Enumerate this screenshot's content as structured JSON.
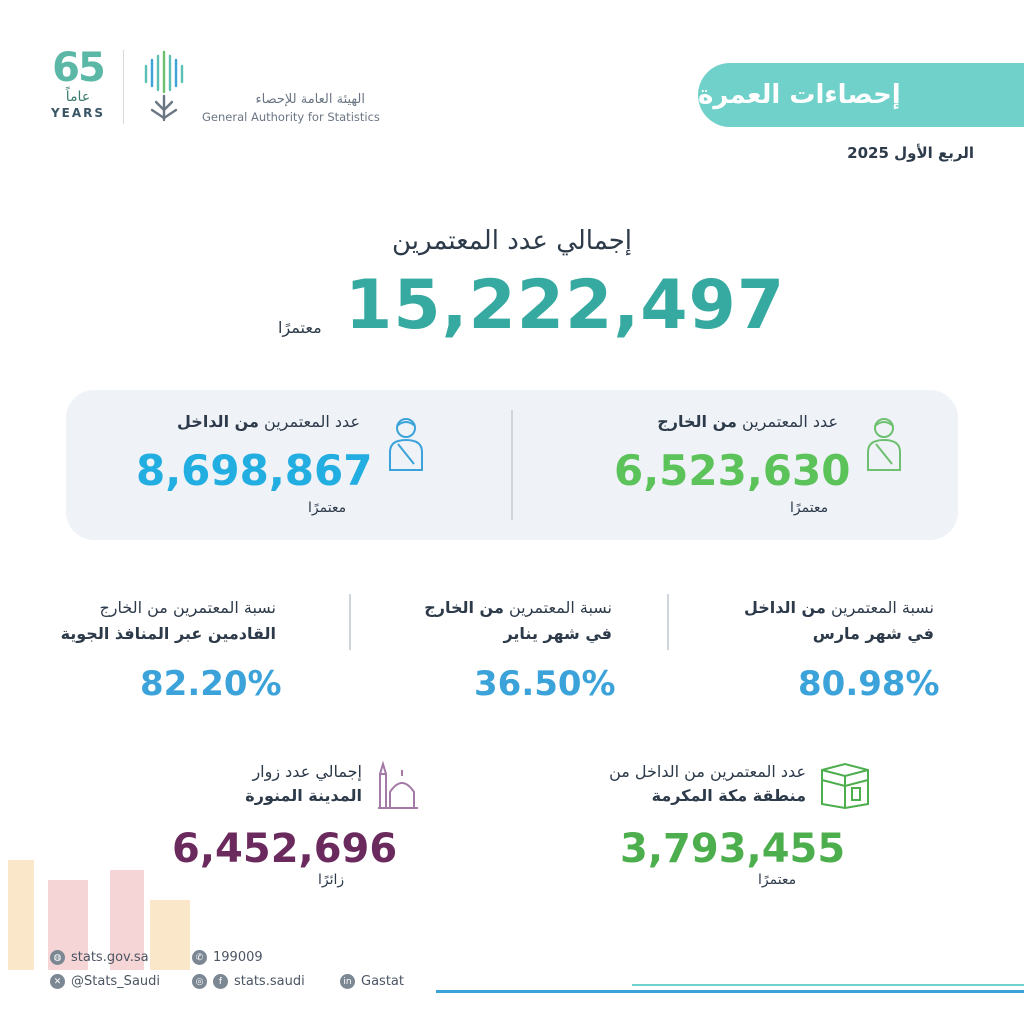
{
  "header": {
    "title": "إحصاءات العمرة",
    "quarter": "الربع الأول 2025",
    "anniversary_number": "65",
    "anniversary_ar": "عاماً",
    "anniversary_en": "YEARS",
    "org_ar": "الهيئة العامة للإحصاء",
    "org_en": "General Authority for Statistics"
  },
  "total": {
    "label": "إجمالي عدد المعتمرين",
    "value": "15,222,497",
    "unit": "معتمرًا"
  },
  "external": {
    "label_prefix": "عدد المعتمرين",
    "label_bold": "من الخارج",
    "value": "6,523,630",
    "unit": "معتمرًا"
  },
  "internal": {
    "label_prefix": "عدد المعتمرين",
    "label_bold": "من الداخل",
    "value": "8,698,867",
    "unit": "معتمرًا"
  },
  "ratios": [
    {
      "line1_prefix": "نسبة المعتمرين",
      "line1_bold": "من الداخل",
      "line2": "في شهر مارس",
      "value": "80.98%"
    },
    {
      "line1_prefix": "نسبة المعتمرين",
      "line1_bold": "من الخارج",
      "line2": "في شهر يناير",
      "value": "36.50%"
    },
    {
      "line1_prefix": "نسبة المعتمرين من الخارج",
      "line1_bold": "",
      "line2": "القادمين عبر المنافذ الجوية",
      "value": "82.20%"
    }
  ],
  "makkah": {
    "line1": "عدد المعتمرين من الداخل من",
    "line2": "منطقة مكة المكرمة",
    "value": "3,793,455",
    "unit": "معتمرًا"
  },
  "madinah": {
    "line1": "إجمالي عدد زوار",
    "line2": "المدينة المنورة",
    "value": "6,452,696",
    "unit": "زائرًا"
  },
  "footer": {
    "website": "stats.gov.sa",
    "phone": "199009",
    "x_handle": "@Stats_Saudi",
    "social": "stats.saudi",
    "linkedin": "Gastat"
  },
  "colors": {
    "teal": "#36a9a0",
    "pill": "#6fd1c9",
    "green": "#5cc25a",
    "blue": "#22aee0",
    "pct_blue": "#3ba3d9",
    "makkah_green": "#4cae4c",
    "purple": "#6b2a5e"
  },
  "icons": [
    "pilgrim-icon",
    "kaaba-icon",
    "mosque-icon",
    "globe-icon",
    "phone-icon",
    "x-icon",
    "instagram-icon",
    "facebook-icon",
    "linkedin-icon"
  ]
}
